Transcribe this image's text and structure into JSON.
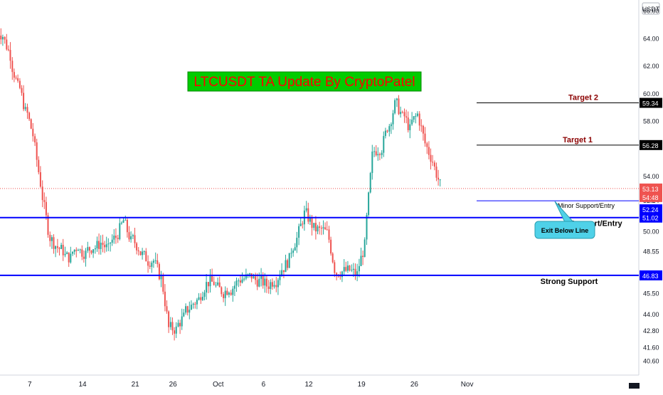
{
  "chart_data": {
    "type": "candlestick",
    "currency_label": "USDT",
    "title_banner": "LTCUSDT TA Update By CryptoPatel",
    "ylim": [
      39.6,
      66.8
    ],
    "y_ticks": [
      "40.60",
      "41.60",
      "42.80",
      "44.00",
      "45.50",
      "46.83",
      "48.55",
      "50.00",
      "51.02",
      "52.24",
      "54.00",
      "56.28",
      "58.00",
      "59.34",
      "60.00",
      "62.00",
      "64.00",
      "66.00"
    ],
    "x_ticks": [
      "7",
      "14",
      "21",
      "26",
      "Oct",
      "6",
      "12",
      "19",
      "26",
      "Nov"
    ],
    "x_tick_positions_days": [
      3,
      10,
      17,
      22,
      28,
      34,
      40,
      47,
      54,
      61
    ],
    "levels": [
      {
        "name": "Target 2",
        "price": 59.34,
        "label": "Target 2",
        "color": "#8b0000",
        "tag": "59.34"
      },
      {
        "name": "Target 1",
        "price": 56.28,
        "label": "Target 1",
        "color": "#8b0000",
        "tag": "56.28"
      },
      {
        "name": "Minor Support/Entry",
        "price": 52.24,
        "label": "Minor Support/Entry",
        "color": "#000000",
        "tag": "52.24"
      },
      {
        "name": "Support/Entry",
        "price": 51.02,
        "label": "Support/Entry",
        "color": "#000000",
        "tag": "51.02"
      },
      {
        "name": "Strong Support",
        "price": 46.83,
        "label": "Strong Support",
        "color": "#000000",
        "tag": "46.83"
      }
    ],
    "current_price": {
      "value": 53.13,
      "tag": "53.13",
      "countdown": "54:48"
    },
    "callout": "Exit Below Line",
    "colors": {
      "up": "#26a69a",
      "down": "#ef5350",
      "support_line": "#0000ff",
      "target_line": "#000000",
      "banner_bg": "#00cc00",
      "banner_text": "#ff0000",
      "callout_bg": "#4fd1e8",
      "price_tag": "#ef5350",
      "level_tag": "#000000",
      "axis_tag_blue": "#0000ff"
    },
    "series": [
      {
        "name": "LTCUSDT",
        "closes_daily": [
          64.2,
          62.8,
          60.5,
          58.7,
          57.0,
          53.5,
          50.2,
          49.0,
          48.6,
          48.1,
          49.0,
          48.4,
          48.9,
          49.2,
          48.7,
          49.6,
          50.8,
          49.3,
          48.8,
          48.1,
          47.9,
          46.6,
          43.0,
          42.9,
          43.8,
          44.6,
          45.1,
          46.2,
          46.3,
          45.7,
          45.9,
          46.3,
          46.6,
          46.8,
          46.4,
          46.1,
          46.5,
          47.3,
          48.0,
          49.5,
          51.3,
          50.5,
          50.1,
          49.9,
          47.3,
          47.1,
          47.2,
          46.9,
          49.0,
          55.5,
          56.0,
          57.6,
          59.2,
          58.3,
          57.4,
          58.5,
          56.4,
          55.1,
          53.4
        ]
      }
    ]
  }
}
